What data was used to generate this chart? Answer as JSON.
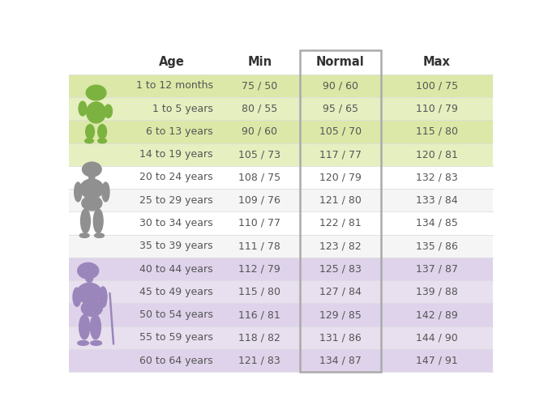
{
  "headers": [
    "Age",
    "Min",
    "Normal",
    "Max"
  ],
  "rows": [
    [
      "1 to 12 months",
      "75 / 50",
      "90 / 60",
      "100 / 75"
    ],
    [
      "1 to 5 years",
      "80 / 55",
      "95 / 65",
      "110 / 79"
    ],
    [
      "6 to 13 years",
      "90 / 60",
      "105 / 70",
      "115 / 80"
    ],
    [
      "14 to 19 years",
      "105 / 73",
      "117 / 77",
      "120 / 81"
    ],
    [
      "20 to 24 years",
      "108 / 75",
      "120 / 79",
      "132 / 83"
    ],
    [
      "25 to 29 years",
      "109 / 76",
      "121 / 80",
      "133 / 84"
    ],
    [
      "30 to 34 years",
      "110 / 77",
      "122 / 81",
      "134 / 85"
    ],
    [
      "35 to 39 years",
      "111 / 78",
      "123 / 82",
      "135 / 86"
    ],
    [
      "40 to 44 years",
      "112 / 79",
      "125 / 83",
      "137 / 87"
    ],
    [
      "45 to 49 years",
      "115 / 80",
      "127 / 84",
      "139 / 88"
    ],
    [
      "50 to 54 years",
      "116 / 81",
      "129 / 85",
      "142 / 89"
    ],
    [
      "55 to 59 years",
      "118 / 82",
      "131 / 86",
      "144 / 90"
    ],
    [
      "60 to 64 years",
      "121 / 83",
      "134 / 87",
      "147 / 91"
    ]
  ],
  "child_bg": "#dce8a8",
  "child_alt": "#e5efc0",
  "adult_bg": "#ffffff",
  "adult_alt": "#f5f5f5",
  "elderly_bg": "#dfd3eb",
  "elderly_alt": "#e8dfef",
  "header_text_color": "#333333",
  "cell_text_color": "#555555",
  "figure_bg": "#ffffff",
  "silhouette_child_color": "#7cb340",
  "silhouette_adult_color": "#909090",
  "silhouette_elderly_color": "#9b86bb",
  "normal_border_color": "#aaaaaa",
  "separator_color": "#dddddd"
}
